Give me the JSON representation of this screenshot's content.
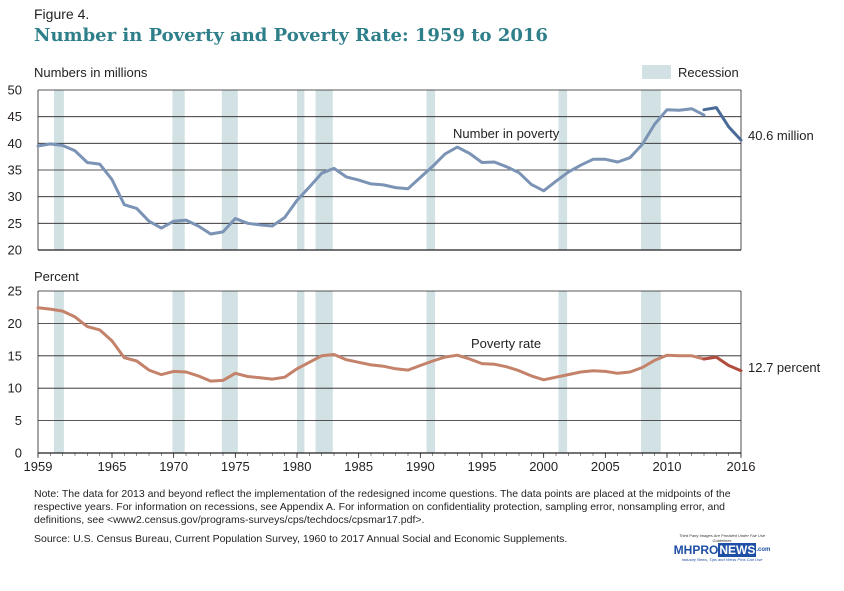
{
  "figure_label": "Figure 4.",
  "title": "Number in Poverty and Poverty Rate: 1959 to 2016",
  "note": "Note: The data for 2013 and beyond reflect the implementation of the redesigned income questions. The data points are placed at the midpoints of the respective years. For information on recessions, see Appendix A. For information on confidentiality protection, sampling error, nonsampling error, and definitions, see <www2.census.gov/programs-surveys/cps/techdocs/cpsmar17.pdf>.",
  "source": "Source: U.S. Census Bureau, Current Population Survey, 1960 to 2017 Annual Social and Economic Supplements.",
  "watermark": {
    "top": "Third Party Images Are Provided Under Fair Use Guidelines",
    "logo_a": "MH",
    "logo_b": "PRO",
    "logo_c": "NEWS",
    "logo_d": ".com",
    "bottom": "Industry News, Tips and Views Pros Can Use"
  },
  "colors": {
    "number_line": "#7b93b5",
    "number_line_recent": "#4a6a98",
    "rate_line": "#c4826a",
    "rate_line_recent": "#b04b3d",
    "recession": "#d2e2e4",
    "gridline": "#231f20",
    "title": "#2f7f8a"
  },
  "chart_data": [
    {
      "type": "line",
      "ylabel": "Numbers in millions",
      "ylim": [
        20,
        50
      ],
      "yticks": [
        "20",
        "25",
        "30",
        "35",
        "40",
        "45",
        "50"
      ],
      "xlim": [
        1959,
        2016
      ],
      "legend": {
        "label": "Recession",
        "position": "top-right"
      },
      "series": [
        {
          "name": "Number in poverty",
          "end_label": "40.6 million",
          "x": [
            1959,
            1960,
            1961,
            1962,
            1963,
            1964,
            1965,
            1966,
            1967,
            1968,
            1969,
            1970,
            1971,
            1972,
            1973,
            1974,
            1975,
            1976,
            1977,
            1978,
            1979,
            1980,
            1981,
            1982,
            1983,
            1984,
            1985,
            1986,
            1987,
            1988,
            1989,
            1990,
            1991,
            1992,
            1993,
            1994,
            1995,
            1996,
            1997,
            1998,
            1999,
            2000,
            2001,
            2002,
            2003,
            2004,
            2005,
            2006,
            2007,
            2008,
            2009,
            2010,
            2011,
            2012,
            2013,
            2014,
            2015,
            2016
          ],
          "values": [
            39.5,
            39.9,
            39.6,
            38.6,
            36.4,
            36.1,
            33.2,
            28.5,
            27.8,
            25.4,
            24.1,
            25.4,
            25.6,
            24.5,
            23.0,
            23.4,
            25.9,
            25.0,
            24.7,
            24.5,
            26.1,
            29.3,
            31.8,
            34.4,
            35.3,
            33.7,
            33.1,
            32.4,
            32.2,
            31.7,
            31.5,
            33.6,
            35.7,
            38.0,
            39.3,
            38.1,
            36.4,
            36.5,
            35.6,
            34.5,
            32.3,
            31.1,
            32.9,
            34.6,
            35.9,
            37.0,
            37.0,
            36.5,
            37.3,
            39.8,
            43.6,
            46.3,
            46.2,
            46.5,
            45.3,
            46.7,
            43.1,
            40.6
          ],
          "recent_x": [
            2013,
            2014,
            2015,
            2016
          ],
          "recent_values": [
            46.3,
            46.7,
            43.1,
            40.6
          ]
        }
      ]
    },
    {
      "type": "line",
      "ylabel": "Percent",
      "ylim": [
        0,
        25
      ],
      "yticks": [
        "0",
        "5",
        "10",
        "15",
        "20",
        "25"
      ],
      "xlim": [
        1959,
        2016
      ],
      "xticks": [
        "1959",
        "1965",
        "1970",
        "1975",
        "1980",
        "1985",
        "1990",
        "1995",
        "2000",
        "2005",
        "2010",
        "2016"
      ],
      "series": [
        {
          "name": "Poverty rate",
          "end_label": "12.7 percent",
          "x": [
            1959,
            1960,
            1961,
            1962,
            1963,
            1964,
            1965,
            1966,
            1967,
            1968,
            1969,
            1970,
            1971,
            1972,
            1973,
            1974,
            1975,
            1976,
            1977,
            1978,
            1979,
            1980,
            1981,
            1982,
            1983,
            1984,
            1985,
            1986,
            1987,
            1988,
            1989,
            1990,
            1991,
            1992,
            1993,
            1994,
            1995,
            1996,
            1997,
            1998,
            1999,
            2000,
            2001,
            2002,
            2003,
            2004,
            2005,
            2006,
            2007,
            2008,
            2009,
            2010,
            2011,
            2012,
            2013,
            2014,
            2015,
            2016
          ],
          "values": [
            22.4,
            22.2,
            21.9,
            21.0,
            19.5,
            19.0,
            17.3,
            14.7,
            14.2,
            12.8,
            12.1,
            12.6,
            12.5,
            11.9,
            11.1,
            11.2,
            12.3,
            11.8,
            11.6,
            11.4,
            11.7,
            13.0,
            14.0,
            15.0,
            15.2,
            14.4,
            14.0,
            13.6,
            13.4,
            13.0,
            12.8,
            13.5,
            14.2,
            14.8,
            15.1,
            14.5,
            13.8,
            13.7,
            13.3,
            12.7,
            11.9,
            11.3,
            11.7,
            12.1,
            12.5,
            12.7,
            12.6,
            12.3,
            12.5,
            13.2,
            14.3,
            15.1,
            15.0,
            15.0,
            14.5,
            14.8,
            13.5,
            12.7
          ],
          "recent_x": [
            2013,
            2014,
            2015,
            2016
          ],
          "recent_values": [
            14.5,
            14.8,
            13.5,
            12.7
          ]
        }
      ]
    }
  ],
  "recessions": [
    [
      1960.3,
      1961.1
    ],
    [
      1969.9,
      1970.9
    ],
    [
      1973.9,
      1975.2
    ],
    [
      1980.0,
      1980.6
    ],
    [
      1981.5,
      1982.9
    ],
    [
      1990.5,
      1991.2
    ],
    [
      2001.2,
      2001.9
    ],
    [
      2007.9,
      2009.5
    ]
  ]
}
